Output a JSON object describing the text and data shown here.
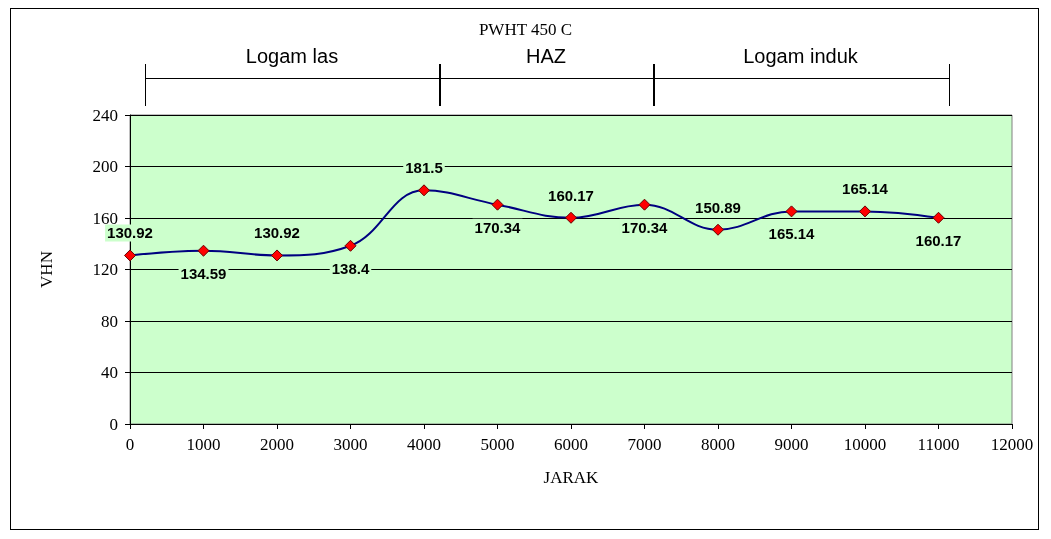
{
  "chart_data": {
    "type": "line",
    "title": "PWHT 450 C",
    "xlabel": "JARAK",
    "ylabel": "VHN",
    "x": [
      0,
      1000,
      2000,
      3000,
      4000,
      5000,
      6000,
      7000,
      8000,
      9000,
      10000,
      11000
    ],
    "series": [
      {
        "color": "#000080",
        "values": [
          130.92,
          134.59,
          130.92,
          138.4,
          181.5,
          170.34,
          160.17,
          170.34,
          150.89,
          165.14,
          165.14,
          160.17
        ]
      }
    ],
    "xlim": [
      0,
      12000
    ],
    "xticks": [
      0,
      1000,
      2000,
      3000,
      4000,
      5000,
      6000,
      7000,
      8000,
      9000,
      10000,
      11000,
      12000
    ],
    "ylim": [
      0,
      240
    ],
    "yticks": [
      0,
      40,
      80,
      120,
      160,
      200,
      240
    ],
    "annotations": [
      "Logam las",
      "HAZ",
      "Logam induk"
    ],
    "data_labels": true,
    "marker": "diamond",
    "line_style": "solid",
    "grid": "y"
  }
}
